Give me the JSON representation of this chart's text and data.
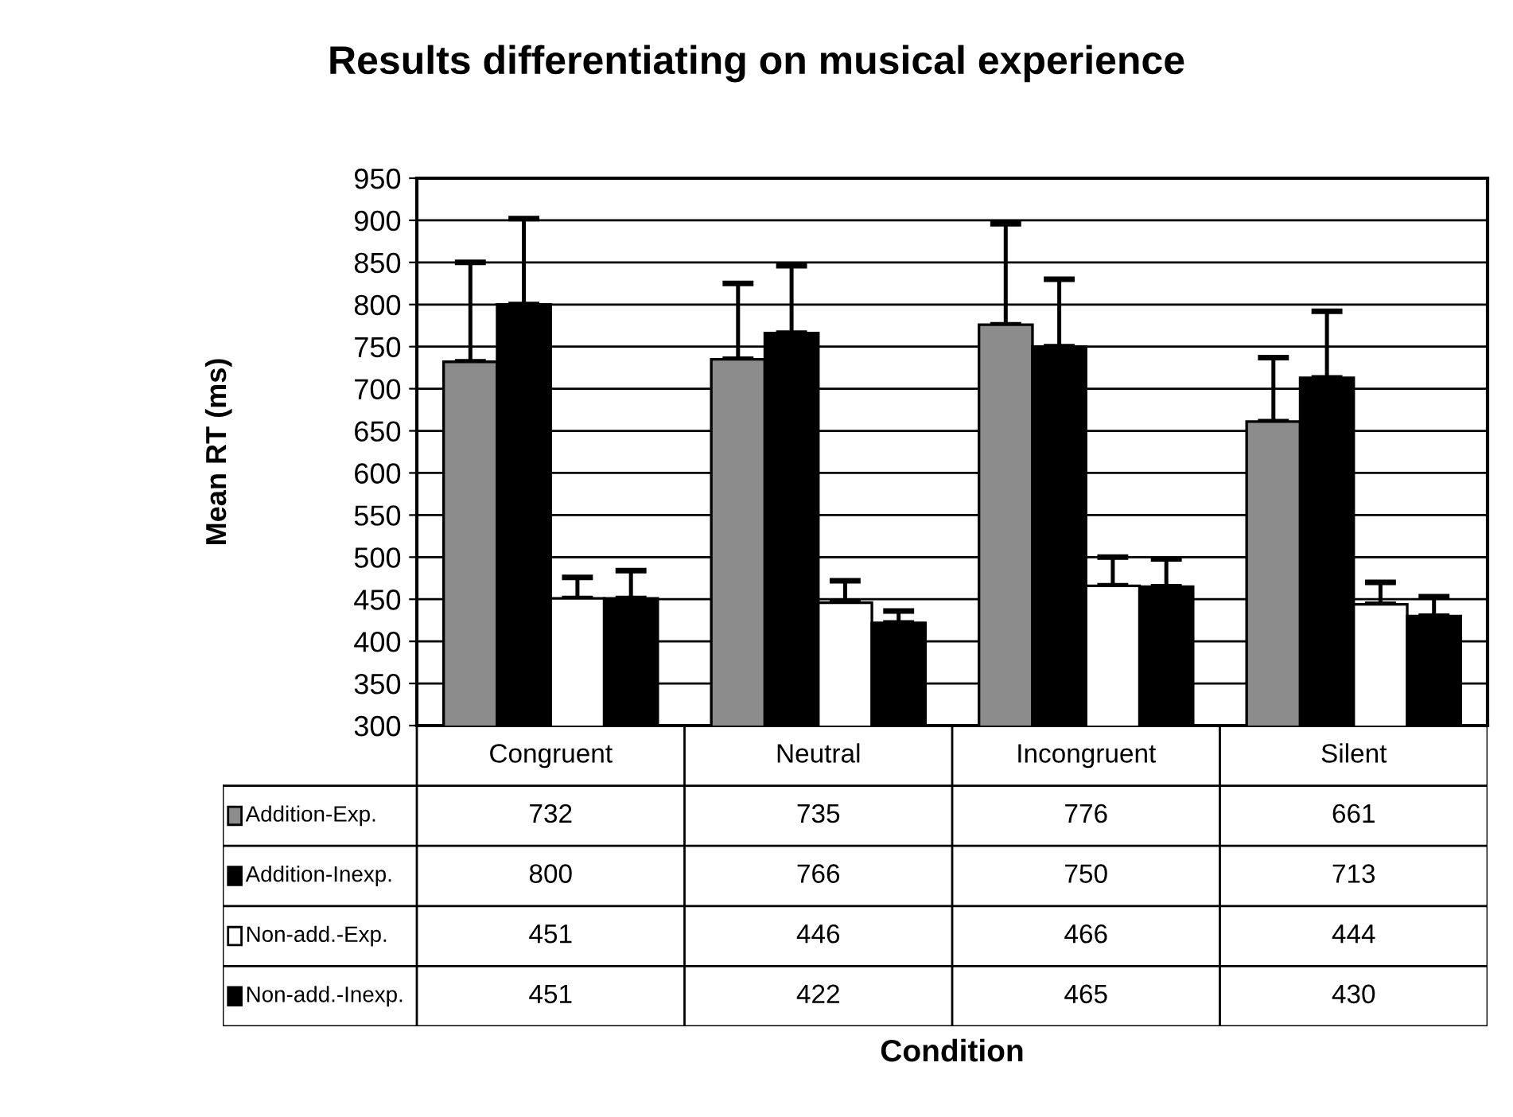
{
  "chart_data": {
    "type": "bar",
    "title": "Results differentiating on musical experience",
    "annotations": [
      "Condition"
    ],
    "ylabel": "Mean RT (ms)",
    "categories": [
      "Congruent",
      "Neutral",
      "Incongruent",
      "Silent"
    ],
    "series": [
      {
        "name": "Addition-Exp.",
        "color": "#8c8c8c",
        "values": [
          732,
          735,
          776,
          661
        ],
        "errors": [
          [
            732,
            850
          ],
          [
            735,
            825
          ],
          [
            776,
            896
          ],
          [
            661,
            737
          ]
        ]
      },
      {
        "name": "Addition-Inexp.",
        "color": "#000000",
        "values": [
          800,
          766,
          750,
          713
        ],
        "errors": [
          [
            800,
            902
          ],
          [
            766,
            846
          ],
          [
            750,
            830
          ],
          [
            713,
            792
          ]
        ]
      },
      {
        "name": "Non-add.-Exp.",
        "color": "#ffffff",
        "values": [
          451,
          446,
          466,
          444
        ],
        "errors": [
          [
            451,
            476
          ],
          [
            446,
            472
          ],
          [
            466,
            500
          ],
          [
            444,
            470
          ]
        ]
      },
      {
        "name": "Non-add.-Inexp.",
        "color": "#000000",
        "values": [
          451,
          422,
          465,
          430
        ],
        "errors": [
          [
            451,
            484
          ],
          [
            422,
            436
          ],
          [
            465,
            498
          ],
          [
            430,
            453
          ]
        ]
      }
    ],
    "ylim": [
      300,
      950
    ],
    "yticks": [
      300,
      350,
      400,
      450,
      500,
      550,
      600,
      650,
      700,
      750,
      800,
      850,
      900,
      950
    ],
    "grid": "y",
    "data_labels": true,
    "legend": "bottom"
  }
}
